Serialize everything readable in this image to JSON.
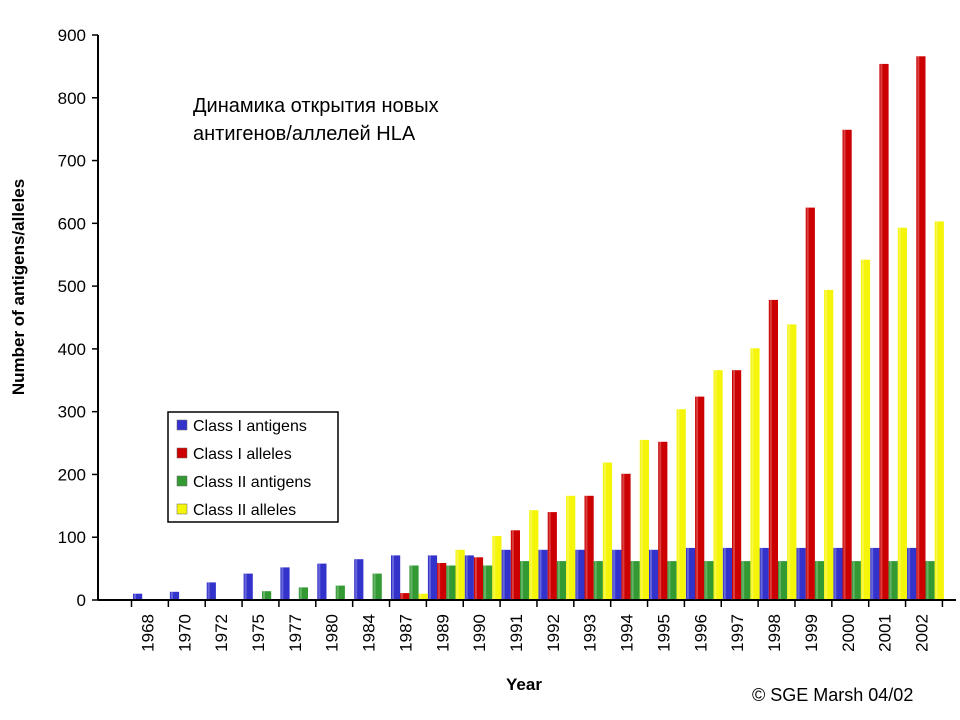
{
  "chart_data": {
    "type": "bar",
    "title_lines": [
      "Динамика открытия новых",
      "антигенов/аллелей HLA"
    ],
    "xlabel": "Year",
    "ylabel": "Number of antigens/alleles",
    "ylim": [
      0,
      900
    ],
    "yticks": [
      0,
      100,
      200,
      300,
      400,
      500,
      600,
      700,
      800,
      900
    ],
    "grid": false,
    "legend_position": "left-middle",
    "categories": [
      "1968",
      "1970",
      "1972",
      "1975",
      "1977",
      "1980",
      "1984",
      "1987",
      "1989",
      "1990",
      "1991",
      "1992",
      "1993",
      "1994",
      "1995",
      "1996",
      "1997",
      "1998",
      "1999",
      "2000",
      "2001",
      "2002"
    ],
    "series": [
      {
        "name": "Class I antigens",
        "color": "#3333cc",
        "values": [
          10,
          13,
          28,
          42,
          52,
          58,
          65,
          71,
          71,
          71,
          80,
          80,
          80,
          80,
          80,
          83,
          83,
          83,
          83,
          83,
          83,
          83
        ]
      },
      {
        "name": "Class I alleles",
        "color": "#cc0000",
        "values": [
          0,
          0,
          0,
          0,
          0,
          0,
          0,
          11,
          59,
          68,
          111,
          140,
          166,
          201,
          252,
          324,
          366,
          478,
          625,
          749,
          854,
          866
        ]
      },
      {
        "name": "Class II antigens",
        "color": "#339933",
        "values": [
          0,
          0,
          0,
          14,
          20,
          23,
          42,
          55,
          55,
          55,
          62,
          62,
          62,
          62,
          62,
          62,
          62,
          62,
          62,
          62,
          62,
          62
        ]
      },
      {
        "name": "Class II alleles",
        "color": "#f5f50a",
        "values": [
          0,
          0,
          0,
          0,
          0,
          0,
          0,
          10,
          80,
          102,
          143,
          166,
          219,
          255,
          304,
          366,
          401,
          439,
          494,
          542,
          593,
          603
        ]
      }
    ]
  },
  "credit": "© SGE Marsh 04/02"
}
